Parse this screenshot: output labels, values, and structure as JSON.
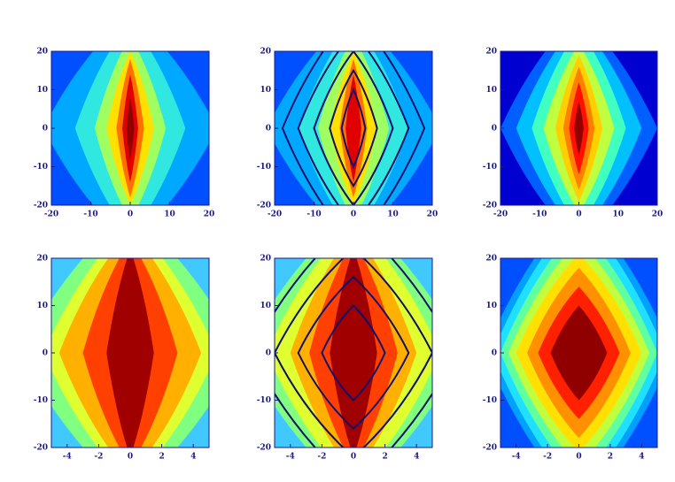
{
  "chart_data": [
    {
      "type": "contour",
      "xlim": [
        -20,
        20
      ],
      "ylim": [
        -20,
        20
      ],
      "xticks": [
        -20,
        -10,
        0,
        10,
        20
      ],
      "yticks": [
        -20,
        -10,
        0,
        10,
        20
      ],
      "background": "#0050ff",
      "bands": [
        {
          "color": "#00a8ff",
          "width": 22,
          "height": 30
        },
        {
          "color": "#30e8e0",
          "width": 14,
          "height": 28
        },
        {
          "color": "#a0ff60",
          "width": 9,
          "height": 24
        },
        {
          "color": "#ffe000",
          "width": 6,
          "height": 20
        },
        {
          "color": "#ff7000",
          "width": 3.5,
          "height": 18
        },
        {
          "color": "#e00000",
          "width": 2,
          "height": 14
        },
        {
          "color": "#900000",
          "width": 1,
          "height": 8
        }
      ],
      "contours": []
    },
    {
      "type": "contour",
      "xlim": [
        -20,
        20
      ],
      "ylim": [
        -20,
        20
      ],
      "xticks": [
        -20,
        -10,
        0,
        10,
        20
      ],
      "yticks": [
        -20,
        -10,
        0,
        10,
        20
      ],
      "background": "#0050ff",
      "bands": [
        {
          "color": "#00a8ff",
          "width": 22,
          "height": 30
        },
        {
          "color": "#30e8e0",
          "width": 14,
          "height": 28
        },
        {
          "color": "#a0ff60",
          "width": 9,
          "height": 24
        },
        {
          "color": "#ffe000",
          "width": 6,
          "height": 20
        },
        {
          "color": "#ff7000",
          "width": 3.5,
          "height": 18
        },
        {
          "color": "#e00000",
          "width": 2,
          "height": 14
        }
      ],
      "contours": [
        {
          "width": 3,
          "height": 10
        },
        {
          "width": 6,
          "height": 15
        },
        {
          "width": 10,
          "height": 20
        },
        {
          "width": 14,
          "height": 25
        },
        {
          "width": 18,
          "height": 30
        }
      ]
    },
    {
      "type": "contour",
      "xlim": [
        -20,
        20
      ],
      "ylim": [
        -20,
        20
      ],
      "xticks": [
        -20,
        -10,
        0,
        10,
        20
      ],
      "yticks": [
        -20,
        -10,
        0,
        10,
        20
      ],
      "background": "#0000d0",
      "bands": [
        {
          "color": "#0060ff",
          "width": 20,
          "height": 30
        },
        {
          "color": "#00c0ff",
          "width": 16,
          "height": 28
        },
        {
          "color": "#40ffc0",
          "width": 12,
          "height": 26
        },
        {
          "color": "#c0ff40",
          "width": 9,
          "height": 22
        },
        {
          "color": "#ffd000",
          "width": 6,
          "height": 19
        },
        {
          "color": "#ff8000",
          "width": 4,
          "height": 16
        },
        {
          "color": "#ff1000",
          "width": 2.5,
          "height": 12
        },
        {
          "color": "#900000",
          "width": 1.2,
          "height": 7
        }
      ],
      "contours": []
    },
    {
      "type": "contour",
      "xlim": [
        -5,
        5
      ],
      "ylim": [
        -20,
        20
      ],
      "xticks": [
        -4,
        -2,
        0,
        2,
        4
      ],
      "yticks": [
        -20,
        -10,
        0,
        10,
        20
      ],
      "background": "#40c8ff",
      "bands": [
        {
          "color": "#80ff80",
          "width": 7,
          "height": 30
        },
        {
          "color": "#e0ff30",
          "width": 5.5,
          "height": 28
        },
        {
          "color": "#ffb000",
          "width": 4.5,
          "height": 26
        },
        {
          "color": "#ff4000",
          "width": 3,
          "height": 24
        },
        {
          "color": "#a00000",
          "width": 1.5,
          "height": 22
        }
      ],
      "contours": []
    },
    {
      "type": "contour",
      "xlim": [
        -5,
        5
      ],
      "ylim": [
        -20,
        20
      ],
      "xticks": [
        -4,
        -2,
        0,
        2,
        4
      ],
      "yticks": [
        -20,
        -10,
        0,
        10,
        20
      ],
      "background": "#40c8ff",
      "bands": [
        {
          "color": "#80ff80",
          "width": 7,
          "height": 30
        },
        {
          "color": "#e0ff30",
          "width": 5.5,
          "height": 28
        },
        {
          "color": "#ffb000",
          "width": 4,
          "height": 26
        },
        {
          "color": "#ff4000",
          "width": 2.8,
          "height": 24
        },
        {
          "color": "#a00000",
          "width": 1.5,
          "height": 22
        }
      ],
      "contours": [
        {
          "width": 2,
          "height": 10
        },
        {
          "width": 3.5,
          "height": 16
        },
        {
          "width": 5,
          "height": 22
        },
        {
          "width": 6.5,
          "height": 28
        }
      ]
    },
    {
      "type": "contour",
      "xlim": [
        -5,
        5
      ],
      "ylim": [
        -20,
        20
      ],
      "xticks": [
        -4,
        -2,
        0,
        2,
        4
      ],
      "yticks": [
        -20,
        -10,
        0,
        10,
        20
      ],
      "background": "#0050ff",
      "bands": [
        {
          "color": "#00a0ff",
          "width": 6,
          "height": 32
        },
        {
          "color": "#20e0ff",
          "width": 5.5,
          "height": 30
        },
        {
          "color": "#60ffa0",
          "width": 5,
          "height": 27
        },
        {
          "color": "#c0ff40",
          "width": 4.5,
          "height": 24
        },
        {
          "color": "#ffe000",
          "width": 4,
          "height": 21
        },
        {
          "color": "#ff9000",
          "width": 3.3,
          "height": 18
        },
        {
          "color": "#ff2000",
          "width": 2.6,
          "height": 14
        },
        {
          "color": "#900000",
          "width": 1.8,
          "height": 10
        }
      ],
      "contours": []
    }
  ]
}
